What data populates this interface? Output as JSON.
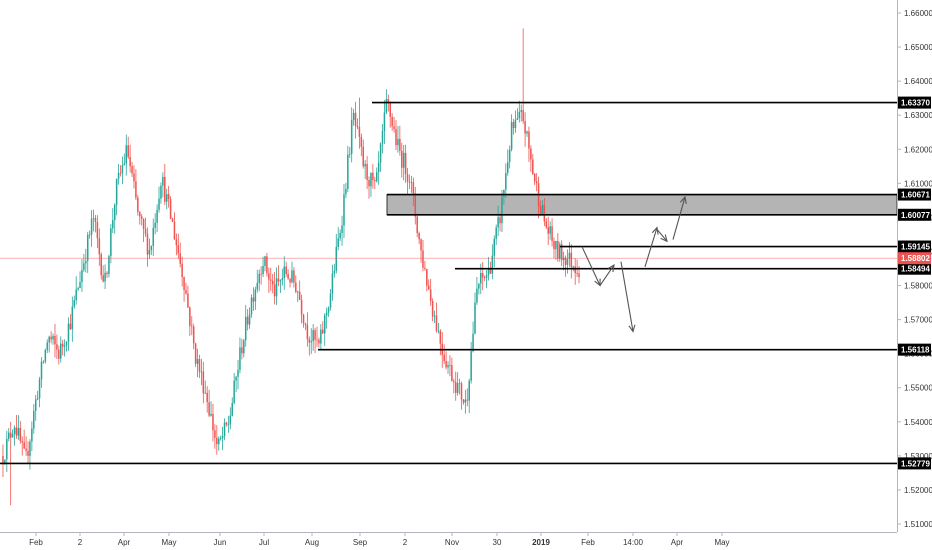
{
  "chart_data": {
    "type": "candlestick",
    "title": "",
    "xlabel": "",
    "ylabel": "",
    "ylim": [
      1.505,
      1.663
    ],
    "y_ticks": [
      "1.66000",
      "1.65000",
      "1.64000",
      "1.63000",
      "1.62000",
      "1.61000",
      "1.60000",
      "1.59000",
      "1.58000",
      "1.57000",
      "1.56000",
      "1.55000",
      "1.54000",
      "1.53000",
      "1.52000",
      "1.51000"
    ],
    "x_ticks": [
      {
        "label": "Feb",
        "bold": false
      },
      {
        "label": "2",
        "bold": false
      },
      {
        "label": "Apr",
        "bold": false
      },
      {
        "label": "May",
        "bold": false
      },
      {
        "label": "Jun",
        "bold": false
      },
      {
        "label": "Jul",
        "bold": false
      },
      {
        "label": "Aug",
        "bold": false
      },
      {
        "label": "Sep",
        "bold": false
      },
      {
        "label": "2",
        "bold": false
      },
      {
        "label": "Nov",
        "bold": false
      },
      {
        "label": "30",
        "bold": false
      },
      {
        "label": "2019",
        "bold": true
      },
      {
        "label": "Feb",
        "bold": false
      },
      {
        "label": "14:00",
        "bold": false
      },
      {
        "label": "Apr",
        "bold": false
      },
      {
        "label": "May",
        "bold": false
      }
    ],
    "price_path": [
      1.53,
      1.54,
      1.528,
      1.548,
      1.565,
      1.56,
      1.57,
      1.585,
      1.6,
      1.58,
      1.608,
      1.62,
      1.6,
      1.59,
      1.612,
      1.598,
      1.582,
      1.56,
      1.548,
      1.532,
      1.54,
      1.56,
      1.576,
      1.588,
      1.578,
      1.584,
      1.58,
      1.566,
      1.562,
      1.578,
      1.6,
      1.63,
      1.614,
      1.608,
      1.634,
      1.62,
      1.612,
      1.59,
      1.574,
      1.56,
      1.552,
      1.545,
      1.58,
      1.584,
      1.6,
      1.625,
      1.63,
      1.612,
      1.598,
      1.59,
      1.588,
      1.585
    ],
    "levels": [
      {
        "value": 1.6337,
        "label": "1.63370"
      },
      {
        "value": 1.60671,
        "label": "1.60671"
      },
      {
        "value": 1.60077,
        "label": "1.60077"
      },
      {
        "value": 1.59145,
        "label": "1.59145"
      },
      {
        "value": 1.58494,
        "label": "1.58494"
      },
      {
        "value": 1.56118,
        "label": "1.56118"
      },
      {
        "value": 1.52779,
        "label": "1.52779"
      }
    ],
    "zone": {
      "from": 1.60077,
      "to": 1.60671,
      "color": "#b4b4b4"
    },
    "current_price": {
      "value": 1.58802,
      "label": "1.58802",
      "color": "#ef5350"
    },
    "projection_path": [
      1.5914,
      1.58,
      1.586,
      1.576,
      1.58,
      1.586,
      1.597,
      1.593,
      1.606
    ],
    "colors": {
      "up": "#26a69a",
      "down": "#ef5350",
      "level": "#000000",
      "tag_bg": "#000000",
      "arrow": "#555555"
    },
    "grid": false,
    "legend": "none"
  }
}
